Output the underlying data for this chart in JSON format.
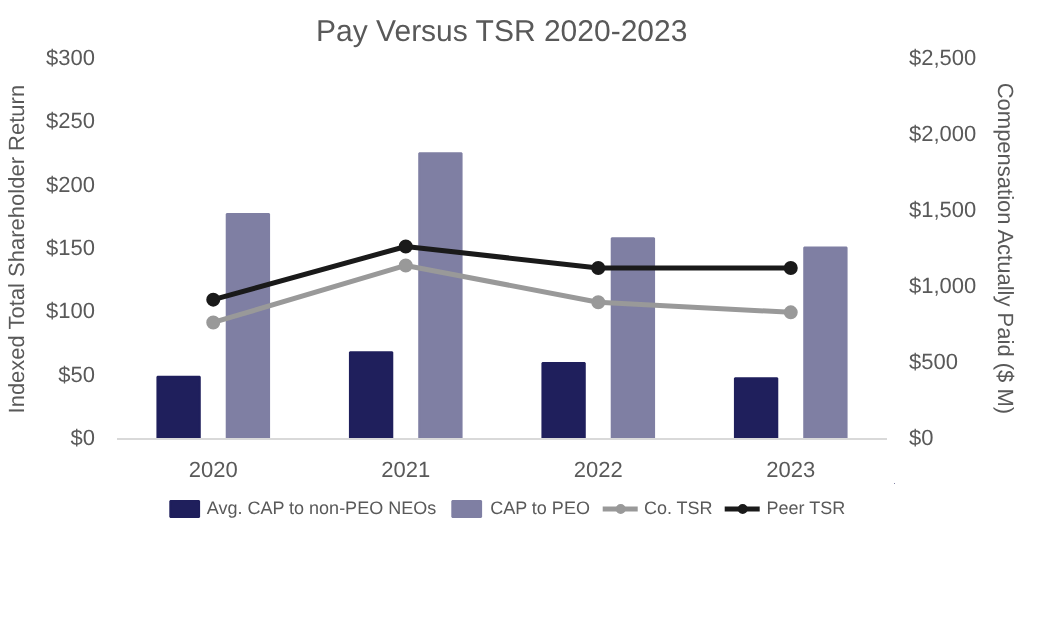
{
  "chart_data": {
    "type": "bar",
    "title": "Pay Versus TSR 2020-2023",
    "ylabel": "Indexed Total Shareholder Return",
    "y2label": "Compensation Actually Paid ($ M)",
    "categories": [
      "2020",
      "2021",
      "2022",
      "2023"
    ],
    "series": [
      {
        "name": "Avg. CAP to non-PEO NEOs",
        "axis": "y2",
        "color": "#1f1f5c",
        "values": [
          410,
          570,
          500,
          400
        ]
      },
      {
        "name": "CAP to PEO",
        "axis": "y2",
        "color": "#7f7fa3",
        "values": [
          1480,
          1880,
          1320,
          1260
        ]
      },
      {
        "name": "Co. TSR",
        "type": "line",
        "color": "#999999",
        "values": [
          92,
          137,
          108,
          100
        ]
      },
      {
        "name": "Peer TSR",
        "type": "line",
        "color": "#1a1a1a",
        "values": [
          110,
          152,
          135,
          135
        ]
      }
    ],
    "ylim": [
      0,
      300
    ],
    "yticks": [
      {
        "value": 0,
        "label": "$0"
      },
      {
        "value": 50,
        "label": "$50"
      },
      {
        "value": 100,
        "label": "$100"
      },
      {
        "value": 150,
        "label": "$150"
      },
      {
        "value": 200,
        "label": "$200"
      },
      {
        "value": 250,
        "label": "$250"
      },
      {
        "value": 300,
        "label": "$300"
      }
    ],
    "y2lim": [
      0,
      2500
    ],
    "y2ticks": [
      {
        "value": 0,
        "label": "$0"
      },
      {
        "value": 500,
        "label": "$500"
      },
      {
        "value": 1000,
        "label": "$1,000"
      },
      {
        "value": 1500,
        "label": "$1,500"
      },
      {
        "value": 2000,
        "label": "$2,000"
      },
      {
        "value": 2500,
        "label": "$2,500"
      }
    ],
    "legend": "bottom",
    "marker": "circle"
  }
}
